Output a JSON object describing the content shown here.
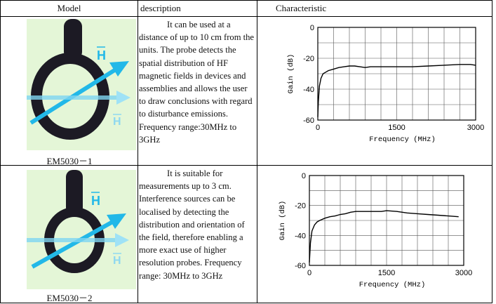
{
  "header": {
    "model": "Model",
    "description": "description",
    "characteristic": "Characteristic"
  },
  "colors": {
    "probe_body": "#1c1a24",
    "arrow_cyan": "#22b8e8",
    "art_background": "#e4f6d7"
  },
  "rows": [
    {
      "model": "EM5030－1",
      "description": "It can be used at a distance of up to 10 cm from the units. The probe detects the spatial distribution of HF magnetic fields in devices and assemblies and allows the user to draw conclusions with regard to disturbance emissions. Frequency range:30MHz to 3GHz",
      "field_label_top": "H",
      "field_label_bottom": "H"
    },
    {
      "model": "EM5030－2",
      "description": "It is suitable for measurements up to 3 cm. Interference sources can be localised by detecting the distribution and orientation of the field, therefore enabling a more exact use of higher resolution probes. Frequency range: 30MHz to 3GHz",
      "field_label_top": "H",
      "field_label_bottom": "H"
    }
  ],
  "chart_data": [
    {
      "type": "line",
      "xlabel": "Frequency (MHz)",
      "ylabel": "Gain (dB)",
      "xlim": [
        0,
        3000
      ],
      "ylim": [
        -60,
        0
      ],
      "xticks": [
        "0",
        "1500",
        "3000"
      ],
      "yticks": [
        "0",
        "-20",
        "-40",
        "-60"
      ],
      "grid": true,
      "series": [
        {
          "x": [
            0,
            10,
            30,
            60,
            100,
            150,
            200,
            300,
            400,
            500,
            600,
            700,
            800,
            900,
            1000,
            1200,
            1500,
            1800,
            2100,
            2400,
            2700,
            2900,
            3000
          ],
          "y": [
            -58,
            -48,
            -38,
            -33,
            -30,
            -29,
            -28,
            -27,
            -26,
            -25.5,
            -25,
            -25,
            -25.5,
            -26,
            -25.5,
            -25.5,
            -25.5,
            -25.5,
            -25,
            -24.5,
            -24,
            -24,
            -24.5
          ]
        }
      ]
    },
    {
      "type": "line",
      "xlabel": "Frequency (MHz)",
      "ylabel": "Gain (dB)",
      "xlim": [
        0,
        3000
      ],
      "ylim": [
        -60,
        0
      ],
      "xticks": [
        "0",
        "1500",
        "3000"
      ],
      "yticks": [
        "0",
        "-20",
        "-40",
        "-60"
      ],
      "grid": true,
      "series": [
        {
          "x": [
            0,
            20,
            50,
            100,
            150,
            200,
            300,
            400,
            500,
            600,
            700,
            800,
            900,
            1000,
            1200,
            1400,
            1500,
            1700,
            1900,
            2100,
            2300,
            2500,
            2700,
            2900
          ],
          "y": [
            -58,
            -45,
            -37,
            -33,
            -31,
            -30,
            -28.5,
            -27.5,
            -27,
            -26,
            -25.5,
            -24.5,
            -24,
            -24,
            -24,
            -24,
            -23.5,
            -24,
            -25,
            -25.5,
            -26,
            -26.5,
            -27,
            -27.5
          ]
        }
      ]
    }
  ]
}
